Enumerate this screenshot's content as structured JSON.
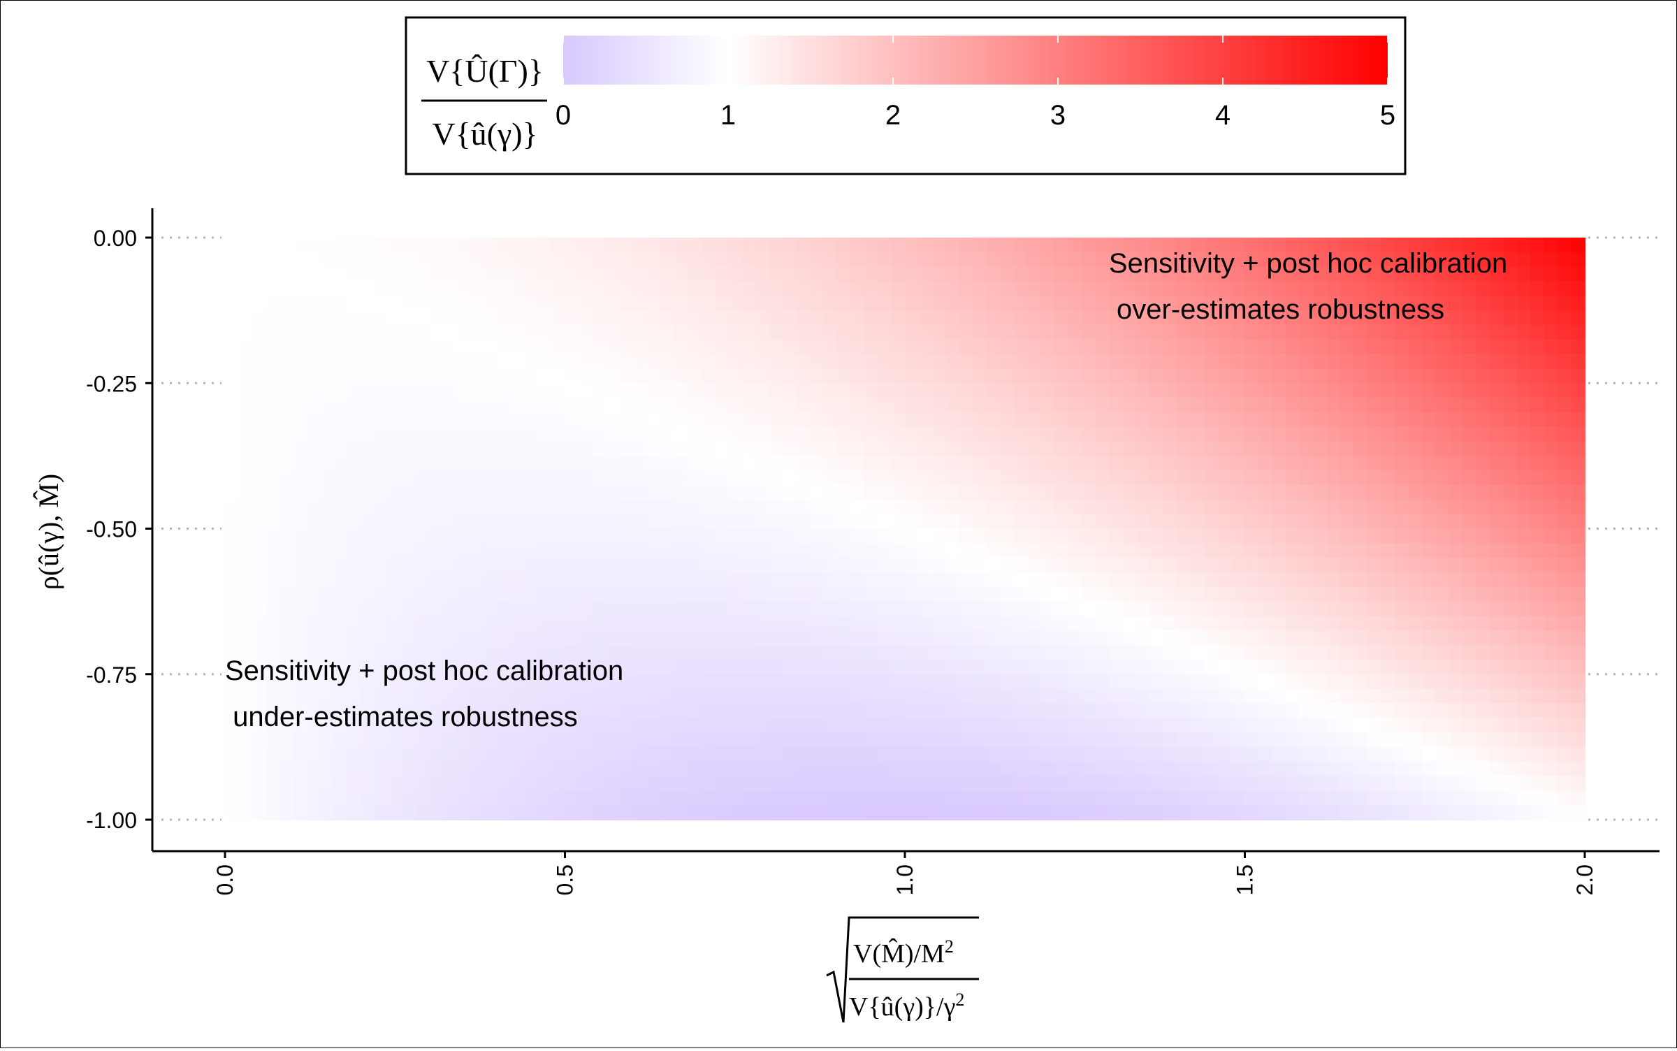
{
  "chart_data": {
    "type": "heatmap",
    "title": "",
    "xlabel": "sqrt( (V(M̂)/M²) / (V{û(γ)}/γ²) )",
    "ylabel": "ρ(û(γ), M̂)",
    "x_range": [
      0,
      2
    ],
    "y_range": [
      -1,
      0
    ],
    "x_ticks": [
      "0.0",
      "0.5",
      "1.0",
      "1.5",
      "2.0"
    ],
    "x_tick_values": [
      0,
      0.5,
      1.0,
      1.5,
      2.0
    ],
    "y_ticks": [
      "0.00",
      "-0.25",
      "-0.50",
      "-0.75",
      "-1.00"
    ],
    "y_tick_values": [
      0,
      -0.25,
      -0.5,
      -0.75,
      -1.0
    ],
    "value_formula": "1 + r^2 + 2*rho*r",
    "value_description": "V{Û(Γ)} / V{û(γ)}",
    "color_scale": {
      "limits": [
        0,
        5
      ],
      "midpoint": 1,
      "low_color": "#d8c8ff",
      "mid_color": "#ffffff",
      "high_color": "#ff0000",
      "ticks": [
        "0",
        "1",
        "2",
        "3",
        "4",
        "5"
      ],
      "tick_values": [
        0,
        1,
        2,
        3,
        4,
        5
      ]
    },
    "legend_position": "top",
    "legend": {
      "numerator": "V{Û(Γ)}",
      "denominator": "V{û(γ)}"
    },
    "annotations": [
      {
        "line1": "Sensitivity + post hoc calibration",
        "line2": " over-estimates robustness",
        "x": 1.3,
        "y": -0.06
      },
      {
        "line1": "Sensitivity + post hoc calibration",
        "line2": " under-estimates robustness",
        "x": 0.0,
        "y": -0.76
      }
    ],
    "grid": "horizontal dotted at y ticks, drawn outside the data range only",
    "axis_labels": {
      "x_num_main": "V(M̂)/M",
      "x_num_sup": "2",
      "x_den_main": "V{û(γ)}/γ",
      "x_den_sup": "2",
      "y_label": "ρ(û(γ), M̂)"
    }
  }
}
